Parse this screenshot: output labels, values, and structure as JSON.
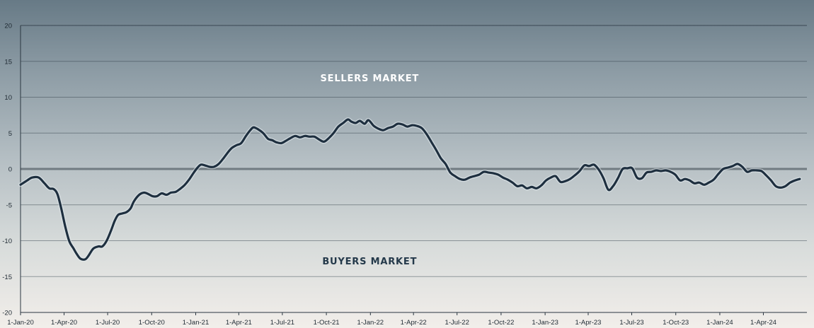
{
  "chart_data": {
    "type": "line",
    "title": "",
    "xlabel": "",
    "ylabel": "",
    "ylim": [
      -20,
      20
    ],
    "yticks": [
      20,
      15,
      10,
      5,
      0,
      -5,
      -10,
      -15,
      -20
    ],
    "xlim": [
      "2020-01-01",
      "2024-07-01"
    ],
    "xtick_labels": [
      "1-Jan-20",
      "1-Apr-20",
      "1-Jul-20",
      "1-Oct-20",
      "1-Jan-21",
      "1-Apr-21",
      "1-Jul-21",
      "1-Oct-21",
      "1-Jan-22",
      "1-Apr-22",
      "1-Jul-22",
      "1-Oct-22",
      "1-Jan-23",
      "1-Apr-23",
      "1-Jul-23",
      "1-Oct-23",
      "1-Jan-24",
      "1-Apr-24"
    ],
    "xtick_dates": [
      "2020-01-01",
      "2020-04-01",
      "2020-07-01",
      "2020-10-01",
      "2021-01-01",
      "2021-04-01",
      "2021-07-01",
      "2021-10-01",
      "2022-01-01",
      "2022-04-01",
      "2022-07-01",
      "2022-10-01",
      "2023-01-01",
      "2023-04-01",
      "2023-07-01",
      "2023-10-01",
      "2024-01-01",
      "2024-04-01"
    ],
    "grid": true,
    "annotations": [
      {
        "text": "SELLERS MARKET",
        "x": "2022-01-01",
        "y": 12.2
      },
      {
        "text": "BUYERS MARKET",
        "x": "2022-01-01",
        "y": -13.3
      }
    ],
    "series": [
      {
        "color": "#1e2f3f",
        "points": [
          [
            "2020-01-01",
            -2.2
          ],
          [
            "2020-01-15",
            -1.6
          ],
          [
            "2020-01-25",
            -1.2
          ],
          [
            "2020-02-08",
            -1.2
          ],
          [
            "2020-02-20",
            -2.0
          ],
          [
            "2020-03-01",
            -2.7
          ],
          [
            "2020-03-10",
            -2.8
          ],
          [
            "2020-03-18",
            -3.5
          ],
          [
            "2020-03-26",
            -5.5
          ],
          [
            "2020-04-04",
            -8.2
          ],
          [
            "2020-04-12",
            -10.1
          ],
          [
            "2020-04-20",
            -11.0
          ],
          [
            "2020-04-27",
            -11.8
          ],
          [
            "2020-05-05",
            -12.5
          ],
          [
            "2020-05-15",
            -12.6
          ],
          [
            "2020-05-22",
            -12.1
          ],
          [
            "2020-06-01",
            -11.1
          ],
          [
            "2020-06-12",
            -10.8
          ],
          [
            "2020-06-20",
            -10.8
          ],
          [
            "2020-06-29",
            -10.0
          ],
          [
            "2020-07-08",
            -8.6
          ],
          [
            "2020-07-16",
            -7.2
          ],
          [
            "2020-07-23",
            -6.4
          ],
          [
            "2020-08-01",
            -6.2
          ],
          [
            "2020-08-10",
            -6.0
          ],
          [
            "2020-08-18",
            -5.5
          ],
          [
            "2020-08-25",
            -4.5
          ],
          [
            "2020-09-05",
            -3.6
          ],
          [
            "2020-09-15",
            -3.3
          ],
          [
            "2020-09-24",
            -3.5
          ],
          [
            "2020-10-03",
            -3.8
          ],
          [
            "2020-10-12",
            -3.8
          ],
          [
            "2020-10-22",
            -3.4
          ],
          [
            "2020-11-01",
            -3.6
          ],
          [
            "2020-11-10",
            -3.3
          ],
          [
            "2020-11-20",
            -3.2
          ],
          [
            "2020-11-29",
            -2.8
          ],
          [
            "2020-12-08",
            -2.3
          ],
          [
            "2020-12-18",
            -1.5
          ],
          [
            "2020-12-27",
            -0.6
          ],
          [
            "2021-01-05",
            0.2
          ],
          [
            "2021-01-12",
            0.6
          ],
          [
            "2021-01-20",
            0.5
          ],
          [
            "2021-01-30",
            0.3
          ],
          [
            "2021-02-08",
            0.3
          ],
          [
            "2021-02-18",
            0.7
          ],
          [
            "2021-02-27",
            1.4
          ],
          [
            "2021-03-08",
            2.2
          ],
          [
            "2021-03-17",
            2.9
          ],
          [
            "2021-03-27",
            3.3
          ],
          [
            "2021-04-06",
            3.6
          ],
          [
            "2021-04-16",
            4.6
          ],
          [
            "2021-04-25",
            5.4
          ],
          [
            "2021-05-02",
            5.8
          ],
          [
            "2021-05-12",
            5.5
          ],
          [
            "2021-05-22",
            5.0
          ],
          [
            "2021-06-01",
            4.2
          ],
          [
            "2021-06-10",
            4.0
          ],
          [
            "2021-06-19",
            3.7
          ],
          [
            "2021-06-29",
            3.6
          ],
          [
            "2021-07-08",
            3.9
          ],
          [
            "2021-07-18",
            4.3
          ],
          [
            "2021-07-28",
            4.6
          ],
          [
            "2021-08-07",
            4.4
          ],
          [
            "2021-08-17",
            4.6
          ],
          [
            "2021-08-27",
            4.5
          ],
          [
            "2021-09-06",
            4.5
          ],
          [
            "2021-09-16",
            4.1
          ],
          [
            "2021-09-26",
            3.8
          ],
          [
            "2021-10-06",
            4.3
          ],
          [
            "2021-10-16",
            5.0
          ],
          [
            "2021-10-26",
            5.9
          ],
          [
            "2021-11-05",
            6.4
          ],
          [
            "2021-11-15",
            6.9
          ],
          [
            "2021-11-22",
            6.6
          ],
          [
            "2021-12-01",
            6.4
          ],
          [
            "2021-12-10",
            6.7
          ],
          [
            "2021-12-20",
            6.3
          ],
          [
            "2021-12-28",
            6.8
          ],
          [
            "2022-01-08",
            6.0
          ],
          [
            "2022-01-18",
            5.6
          ],
          [
            "2022-01-28",
            5.4
          ],
          [
            "2022-02-07",
            5.7
          ],
          [
            "2022-02-17",
            5.9
          ],
          [
            "2022-02-27",
            6.3
          ],
          [
            "2022-03-09",
            6.2
          ],
          [
            "2022-03-19",
            5.9
          ],
          [
            "2022-03-29",
            6.1
          ],
          [
            "2022-04-08",
            6.0
          ],
          [
            "2022-04-18",
            5.7
          ],
          [
            "2022-04-28",
            4.9
          ],
          [
            "2022-05-08",
            3.8
          ],
          [
            "2022-05-18",
            2.7
          ],
          [
            "2022-05-28",
            1.5
          ],
          [
            "2022-06-07",
            0.7
          ],
          [
            "2022-06-17",
            -0.5
          ],
          [
            "2022-06-27",
            -1.0
          ],
          [
            "2022-07-07",
            -1.4
          ],
          [
            "2022-07-17",
            -1.5
          ],
          [
            "2022-07-27",
            -1.2
          ],
          [
            "2022-08-06",
            -1.0
          ],
          [
            "2022-08-16",
            -0.8
          ],
          [
            "2022-08-26",
            -0.4
          ],
          [
            "2022-09-05",
            -0.5
          ],
          [
            "2022-09-15",
            -0.6
          ],
          [
            "2022-09-25",
            -0.8
          ],
          [
            "2022-10-05",
            -1.2
          ],
          [
            "2022-10-15",
            -1.5
          ],
          [
            "2022-10-25",
            -1.9
          ],
          [
            "2022-11-04",
            -2.4
          ],
          [
            "2022-11-14",
            -2.3
          ],
          [
            "2022-11-24",
            -2.7
          ],
          [
            "2022-12-04",
            -2.5
          ],
          [
            "2022-12-14",
            -2.7
          ],
          [
            "2022-12-24",
            -2.3
          ],
          [
            "2023-01-03",
            -1.6
          ],
          [
            "2023-01-13",
            -1.2
          ],
          [
            "2023-01-23",
            -1.0
          ],
          [
            "2023-02-02",
            -1.8
          ],
          [
            "2023-02-12",
            -1.7
          ],
          [
            "2023-02-22",
            -1.4
          ],
          [
            "2023-03-04",
            -0.9
          ],
          [
            "2023-03-14",
            -0.3
          ],
          [
            "2023-03-24",
            0.5
          ],
          [
            "2023-04-03",
            0.4
          ],
          [
            "2023-04-13",
            0.6
          ],
          [
            "2023-04-23",
            -0.1
          ],
          [
            "2023-05-03",
            -1.3
          ],
          [
            "2023-05-13",
            -2.9
          ],
          [
            "2023-05-23",
            -2.4
          ],
          [
            "2023-06-02",
            -1.3
          ],
          [
            "2023-06-12",
            0.0
          ],
          [
            "2023-06-22",
            0.1
          ],
          [
            "2023-07-02",
            0.1
          ],
          [
            "2023-07-12",
            -1.2
          ],
          [
            "2023-07-22",
            -1.3
          ],
          [
            "2023-08-01",
            -0.5
          ],
          [
            "2023-08-11",
            -0.4
          ],
          [
            "2023-08-21",
            -0.2
          ],
          [
            "2023-08-31",
            -0.3
          ],
          [
            "2023-09-10",
            -0.2
          ],
          [
            "2023-09-20",
            -0.4
          ],
          [
            "2023-09-30",
            -0.8
          ],
          [
            "2023-10-10",
            -1.6
          ],
          [
            "2023-10-20",
            -1.4
          ],
          [
            "2023-10-30",
            -1.6
          ],
          [
            "2023-11-09",
            -2.0
          ],
          [
            "2023-11-19",
            -1.9
          ],
          [
            "2023-11-29",
            -2.2
          ],
          [
            "2023-12-09",
            -1.9
          ],
          [
            "2023-12-19",
            -1.5
          ],
          [
            "2023-12-29",
            -0.7
          ],
          [
            "2024-01-08",
            0.0
          ],
          [
            "2024-01-18",
            0.2
          ],
          [
            "2024-01-28",
            0.4
          ],
          [
            "2024-02-07",
            0.7
          ],
          [
            "2024-02-17",
            0.3
          ],
          [
            "2024-02-27",
            -0.4
          ],
          [
            "2024-03-08",
            -0.2
          ],
          [
            "2024-03-18",
            -0.2
          ],
          [
            "2024-03-28",
            -0.3
          ],
          [
            "2024-04-07",
            -0.9
          ],
          [
            "2024-04-17",
            -1.6
          ],
          [
            "2024-04-27",
            -2.4
          ],
          [
            "2024-05-07",
            -2.6
          ],
          [
            "2024-05-17",
            -2.4
          ],
          [
            "2024-05-27",
            -1.9
          ],
          [
            "2024-06-06",
            -1.6
          ],
          [
            "2024-06-16",
            -1.4
          ]
        ]
      }
    ]
  }
}
